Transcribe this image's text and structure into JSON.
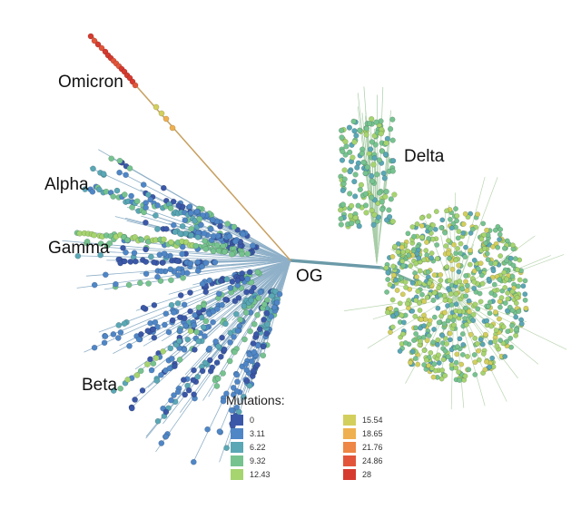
{
  "diagram": {
    "clade_labels": {
      "omicron": "Omicron",
      "alpha": "Alpha",
      "gamma": "Gamma",
      "beta": "Beta",
      "delta": "Delta",
      "og": "OG"
    },
    "legend": {
      "title": "Mutations:",
      "items": [
        {
          "value": "0",
          "color": "#3b58a8"
        },
        {
          "value": "3.11",
          "color": "#4f86c6"
        },
        {
          "value": "6.22",
          "color": "#5aa7b5"
        },
        {
          "value": "9.32",
          "color": "#76c38f"
        },
        {
          "value": "12.43",
          "color": "#a6d46f"
        },
        {
          "value": "15.54",
          "color": "#d3cf5d"
        },
        {
          "value": "18.65",
          "color": "#efb04f"
        },
        {
          "value": "21.76",
          "color": "#ee8645"
        },
        {
          "value": "24.86",
          "color": "#e2553a"
        },
        {
          "value": "28",
          "color": "#d63a2f"
        }
      ]
    }
  }
}
